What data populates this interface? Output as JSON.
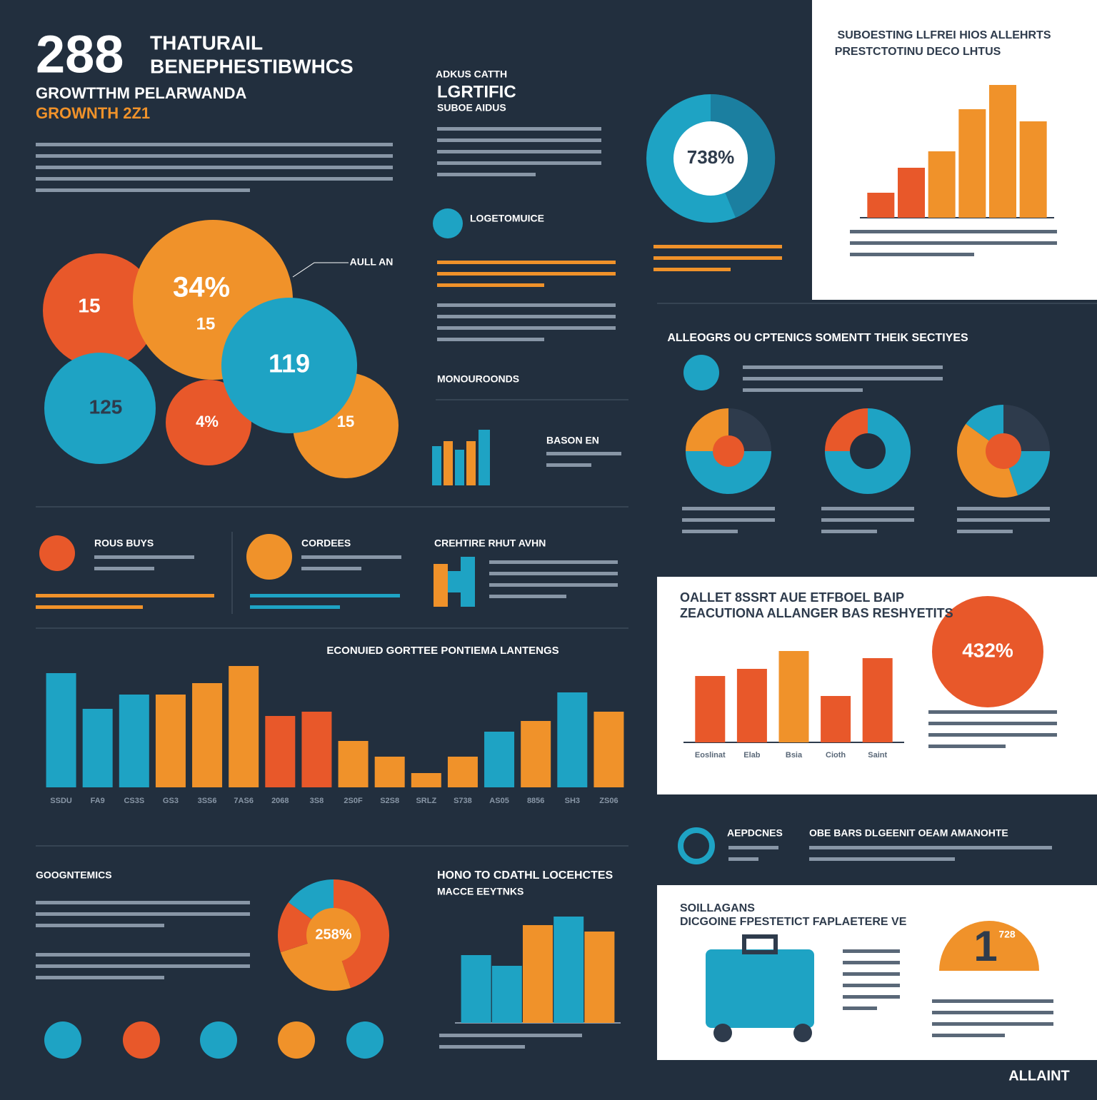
{
  "header": {
    "big_number": "288",
    "title_1": "THATURAIL",
    "title_2": "BENEPHESTIBWHCS",
    "subtitle_1": "GROWTTHM PELARWANDA",
    "subtitle_2": "GROWNTH 2Z1"
  },
  "top_middle": {
    "kicker": "ADKUS CATTH",
    "title": "LGRTIFIC",
    "subtitle": "SUBOE AIDUS"
  },
  "bubbles": [
    "15",
    "34%",
    "15",
    "119",
    "125",
    "4%",
    "15"
  ],
  "callout": "AULL AN",
  "texts": {
    "logo_title": "LOGETOMUICE",
    "section_a": "MONOUROONDS",
    "section_b": "BASON EN",
    "card_1": "ROUS BUYS",
    "card_2": "CORDEES",
    "card_3": "CREHTIRE RHUT AVHN",
    "pies_title": "ALLEOGRS OU CPTENICS SOMENTT THEIK SECTIYES",
    "bottom_left": "GOOGNTEMICS",
    "bottom_mid_1": "HONO TO CDATHL LOCEHCTES",
    "bottom_mid_2": "MACCE EEYTNKS",
    "right_a": "AEPDCNES",
    "right_b": "OBE BARS DLGEENIT OEAM AMANOHTE",
    "panel3_1": "SOILLAGANS",
    "panel3_2": "DICGOINE FPESTETICT FAPLAETERE VE",
    "panel3_big": "1",
    "panel3_small": "728",
    "brand": "ALLAINT",
    "donut_label": "738%",
    "panel2_big": "432%",
    "panel1_1": "SUBOESTING LLFREI HIOS ALLEHRTS",
    "panel1_2": "PRESTCTOTINU DECO LHTUS",
    "panel2_1": "OALLET 8SSRT AUE ETFBOEL BAIP",
    "panel2_2": "ZEACUTIONA ALLANGER BAS RESHYETITS"
  },
  "chart_data": [
    {
      "type": "bar",
      "values": [
        35,
        70,
        93,
        152,
        186,
        135
      ],
      "colors": [
        "#e8582a",
        "#e8582a",
        "#f0922a",
        "#f0922a",
        "#f0922a",
        "#f0922a"
      ],
      "ylim": [
        0,
        190
      ]
    },
    {
      "type": "bar",
      "title": "ECONUIED GORTTEE PONTIEMA LANTENGS",
      "categories": [
        "SSDU",
        "FA9",
        "CS3S",
        "GS3",
        "3SS6",
        "7AS6",
        "2068",
        "3S8",
        "2S0F",
        "S2S8",
        "SRLZ",
        "S738",
        "AS05",
        "8856",
        "SH3",
        "ZS06"
      ],
      "values": [
        160,
        110,
        130,
        130,
        146,
        170,
        100,
        106,
        65,
        43,
        20,
        43,
        78,
        93,
        133,
        106
      ],
      "colors": [
        "#1ea3c4",
        "#1ea3c4",
        "#1ea3c4",
        "#f0922a",
        "#f0922a",
        "#f0922a",
        "#e8582a",
        "#e8582a",
        "#f0922a",
        "#f0922a",
        "#f0922a",
        "#f0922a",
        "#1ea3c4",
        "#f0922a",
        "#1ea3c4",
        "#f0922a"
      ],
      "ylim": [
        0,
        183
      ]
    },
    {
      "type": "bar",
      "categories": [
        "Eoslinat",
        "Elab",
        "Bsia",
        "Cioth",
        "Saint"
      ],
      "values": [
        93,
        103,
        128,
        65,
        118
      ],
      "colors": [
        "#e8582a",
        "#e8582a",
        "#f0922a",
        "#e8582a",
        "#e8582a"
      ],
      "ylim": [
        0,
        140
      ]
    },
    {
      "type": "bar",
      "values": [
        95,
        80,
        137,
        149,
        128
      ],
      "colors": [
        "#1ea3c4",
        "#1ea3c4",
        "#f0922a",
        "#1ea3c4",
        "#f0922a"
      ],
      "ylim": [
        0,
        160
      ]
    },
    {
      "type": "pie",
      "values": [
        25,
        50,
        25
      ],
      "colors": [
        "#2e3b4c",
        "#1ea3c4",
        "#f0922a"
      ]
    },
    {
      "type": "pie",
      "values": [
        75,
        25
      ],
      "colors": [
        "#1ea3c4",
        "#e8582a"
      ]
    },
    {
      "type": "pie",
      "values": [
        25,
        20,
        40,
        15
      ],
      "colors": [
        "#2e3b4c",
        "#1ea3c4",
        "#f0922a",
        "#1ea3c4"
      ]
    },
    {
      "type": "pie",
      "center_label": "258%",
      "values": [
        45,
        25,
        15,
        15
      ],
      "colors": [
        "#e8582a",
        "#f0922a",
        "#e8582a",
        "#1ea3c4"
      ]
    }
  ]
}
